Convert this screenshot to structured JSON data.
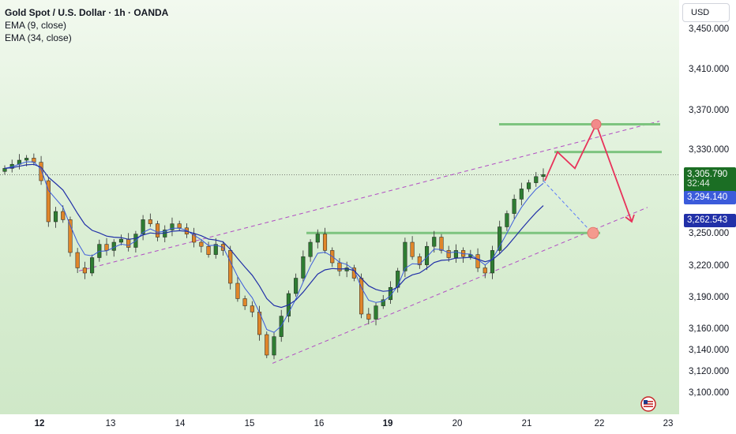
{
  "legend": {
    "title": "Gold Spot / U.S. Dollar · 1h · OANDA",
    "ema9": "EMA (9, close)",
    "ema34": "EMA (34, close)"
  },
  "currency_button": "USD",
  "price_axis": {
    "ticks": [
      "3,450.000",
      "3,410.000",
      "3,370.000",
      "3,330.000",
      "3,250.000",
      "3,220.000",
      "3,190.000",
      "3,160.000",
      "3,140.000",
      "3,120.000",
      "3,100.000"
    ]
  },
  "price_tags": {
    "last_price": "3,305.790",
    "countdown": "32:44",
    "ema9_value": "3,294.140",
    "ema34_value": "3,262.543"
  },
  "time_axis": {
    "labels": [
      "12",
      "13",
      "14",
      "15",
      "16",
      "19",
      "20",
      "21",
      "22",
      "23"
    ]
  },
  "colors": {
    "bull": "#2e7d32",
    "bear": "#e0862a",
    "ema9": "#3b5bdb",
    "ema34": "#2130a8",
    "level": "#7dc47f",
    "projection": "#e8325a",
    "channel": "#b24fc4",
    "last_tag": "#1b6e24",
    "ema9_tag": "#3b5bdb",
    "ema34_tag": "#2130a8"
  },
  "chart_data": {
    "type": "candlestick",
    "title": "Gold Spot / U.S. Dollar · 1h · OANDA",
    "ylim": [
      3095,
      3465
    ],
    "x_labels": [
      "12",
      "13",
      "14",
      "15",
      "16",
      "19",
      "20",
      "21",
      "22",
      "23"
    ],
    "last_price": 3305.79,
    "series": [
      {
        "name": "EMA (9, close)",
        "last": 3294.14
      },
      {
        "name": "EMA (34, close)",
        "last": 3262.543
      }
    ],
    "close_path": [
      3312,
      3316,
      3320,
      3322,
      3318,
      3300,
      3260,
      3270,
      3262,
      3230,
      3215,
      3210,
      3225,
      3238,
      3232,
      3240,
      3243,
      3235,
      3248,
      3262,
      3258,
      3245,
      3252,
      3258,
      3254,
      3248,
      3240,
      3236,
      3228,
      3238,
      3232,
      3200,
      3185,
      3178,
      3172,
      3150,
      3130,
      3148,
      3168,
      3190,
      3205,
      3226,
      3240,
      3248,
      3232,
      3220,
      3212,
      3215,
      3205,
      3170,
      3165,
      3178,
      3184,
      3196,
      3212,
      3240,
      3226,
      3218,
      3236,
      3245,
      3232,
      3225,
      3232,
      3226,
      3228,
      3215,
      3210,
      3232,
      3255,
      3268,
      3282,
      3292,
      3298,
      3304,
      3306
    ],
    "support_levels": [
      3355,
      3328,
      3249
    ],
    "projection_path": [
      3300,
      3328,
      3312,
      3355,
      3260
    ],
    "annotations": [
      {
        "marker": "circle",
        "price": 3355
      },
      {
        "marker": "circle",
        "price": 3249
      }
    ]
  }
}
